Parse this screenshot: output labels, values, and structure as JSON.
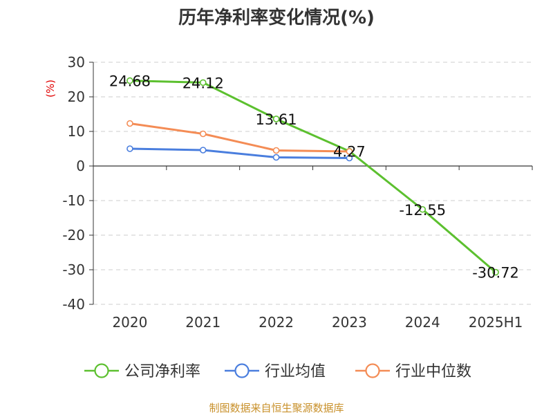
{
  "title": "历年净利率变化情况(%)",
  "source": "制图数据来自恒生聚源数据库",
  "chart_data": {
    "type": "line",
    "title": "历年净利率变化情况(%)",
    "ylabel": "(%)",
    "categories": [
      "2020",
      "2021",
      "2022",
      "2023",
      "2024",
      "2025H1"
    ],
    "ylim": [
      -40,
      30
    ],
    "yticks": [
      30,
      20,
      10,
      0,
      -10,
      -20,
      -30,
      -40
    ],
    "grid": true,
    "legend_position": "bottom",
    "series": [
      {
        "name": "公司净利率",
        "color": "#5cc02f",
        "values": [
          24.68,
          24.12,
          13.61,
          4.27,
          -12.55,
          -30.72
        ],
        "labels": [
          "24.68",
          "24.12",
          "13.61",
          "4.27",
          "-12.55",
          "-30.72"
        ]
      },
      {
        "name": "行业均值",
        "color": "#4a7ede",
        "values": [
          5.0,
          4.6,
          2.5,
          2.3,
          null,
          null
        ]
      },
      {
        "name": "行业中位数",
        "color": "#f48c55",
        "values": [
          12.3,
          9.3,
          4.5,
          4.2,
          null,
          null
        ]
      }
    ]
  }
}
